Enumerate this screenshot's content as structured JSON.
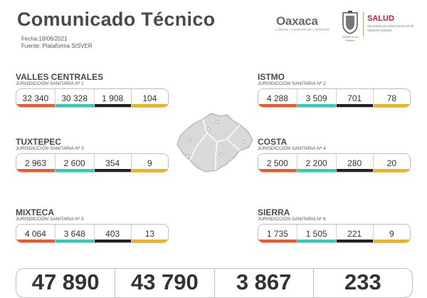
{
  "header": {
    "title": "Comunicado Técnico",
    "date": "Fecha:18/06/2021",
    "source": "Fuente: Plataforma SISVER"
  },
  "logos": {
    "oaxaca_word": "Oaxaca",
    "oaxaca_tagline": "CREAR • CONSTRUIR • CRECER",
    "seal_caption": "Gobierno del Estado",
    "salud": "SALUD",
    "salud_sub": "Secretaría de Salud\nServicios de Salud de Oaxaca"
  },
  "colors": {
    "red": "#e85c2c",
    "teal": "#35c9b7",
    "black": "#222222",
    "yellow": "#f0b419"
  },
  "regions": [
    {
      "name": "VALLES CENTRALES",
      "sub": "JURISDICCIÓN SANITARIA Nº 1",
      "values": [
        "32 340",
        "30 328",
        "1 908",
        "104"
      ]
    },
    {
      "name": "ISTMO",
      "sub": "JURISDICCIÓN SANITARIA Nº 2",
      "values": [
        "4 288",
        "3 509",
        "701",
        "78"
      ]
    },
    {
      "name": "TUXTEPEC",
      "sub": "JURISDICCIÓN SANITARIA Nº 3",
      "values": [
        "2 963",
        "2 600",
        "354",
        "9"
      ]
    },
    {
      "name": "COSTA",
      "sub": "JURISDICCIÓN SANITARIA Nº 4",
      "values": [
        "2 500",
        "2 200",
        "280",
        "20"
      ]
    },
    {
      "name": "MIXTECA",
      "sub": "JURISDICCIÓN SANITARIA Nº 5",
      "values": [
        "4 064",
        "3 648",
        "403",
        "13"
      ]
    },
    {
      "name": "SIERRA",
      "sub": "JURISDICCIÓN SANITARIA Nº 6",
      "values": [
        "1 735",
        "1 505",
        "221",
        "9"
      ]
    }
  ],
  "totals": [
    "47 890",
    "43 790",
    "3 867",
    "233"
  ]
}
